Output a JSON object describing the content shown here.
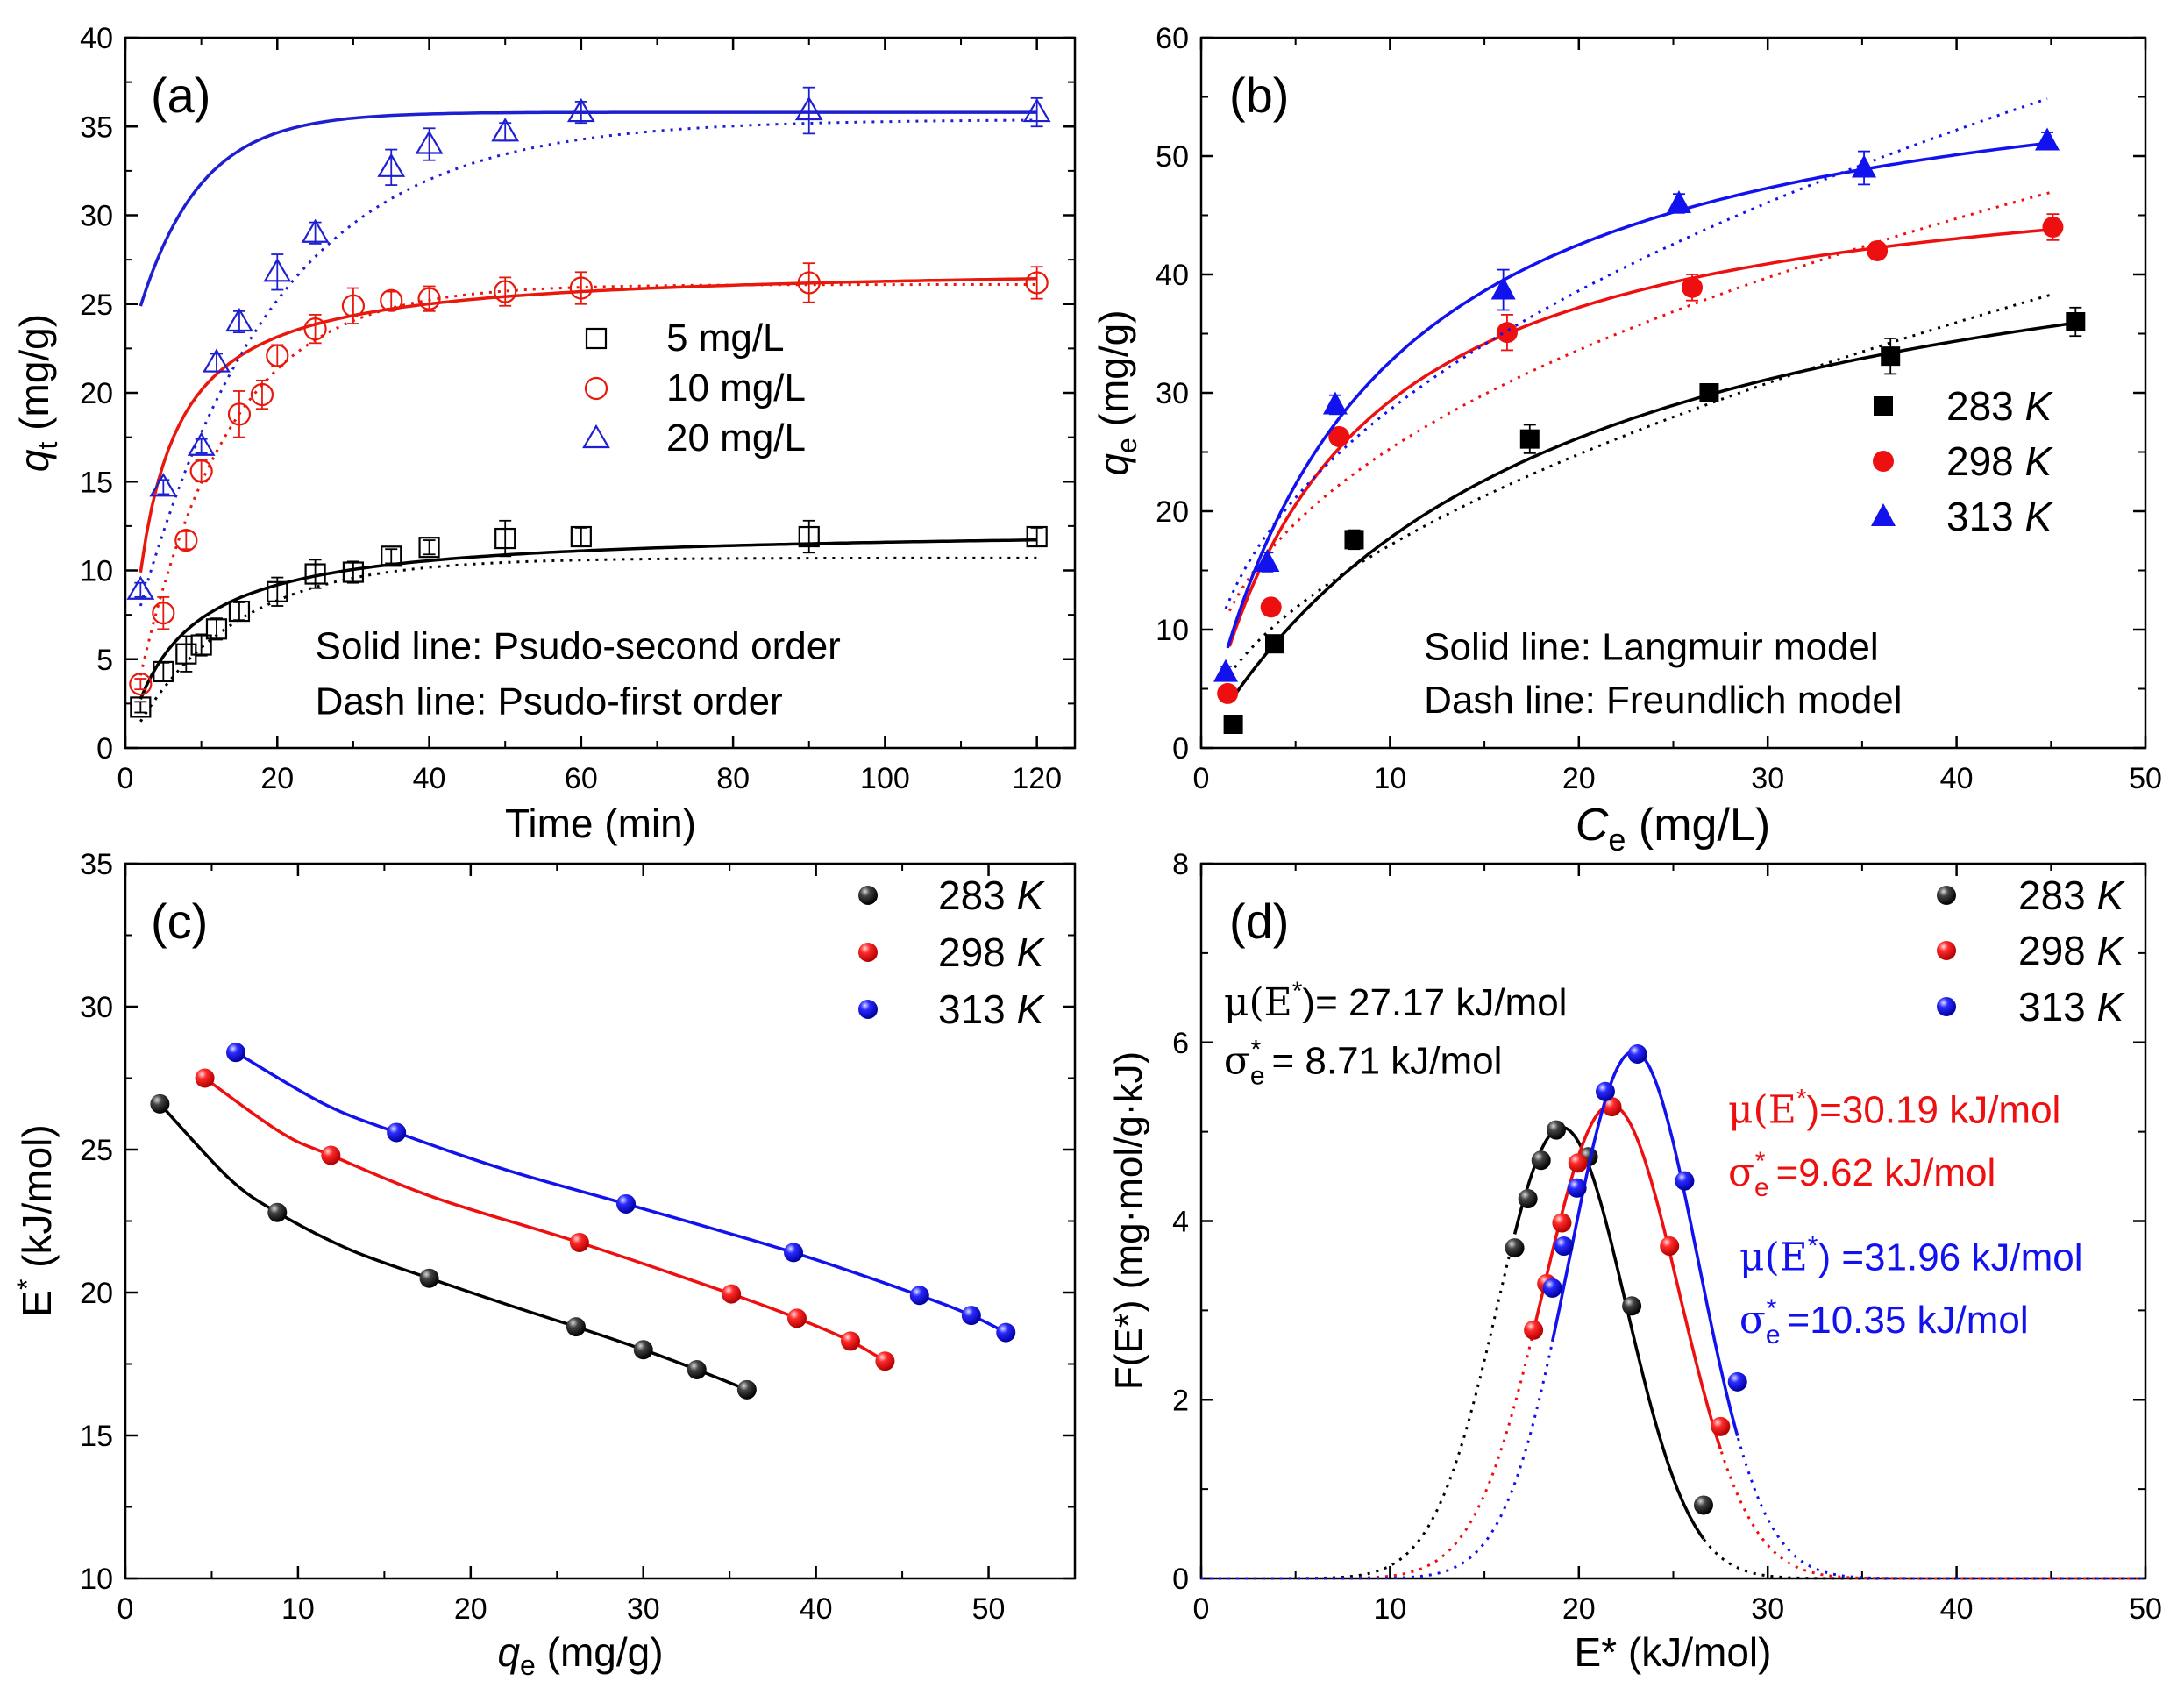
{
  "chart_data": [
    {
      "id": "a",
      "type": "scatter",
      "panel_label": "(a)",
      "xlabel": "Time (min)",
      "ylabel": {
        "main": "q",
        "sub": "t",
        "unit": " (mg/g)"
      },
      "xlim": [
        0,
        125
      ],
      "ylim": [
        0,
        40
      ],
      "xticks": [
        0,
        20,
        40,
        60,
        80,
        100,
        120
      ],
      "yticks": [
        0,
        5,
        10,
        15,
        20,
        25,
        30,
        35,
        40
      ],
      "legend": {
        "position": "center-right",
        "entries": [
          "5 mg/L",
          "10 mg/L",
          "20 mg/L"
        ]
      },
      "annotations": [
        {
          "text": "Solid line: Psudo-second order",
          "x": 25,
          "y": 5.7,
          "color": "#000000"
        },
        {
          "text": "Dash line: Psudo-first order",
          "x": 25,
          "y": 2.6,
          "color": "#000000"
        }
      ],
      "series": [
        {
          "name": "5 mg/L",
          "color": "#000000",
          "marker": "square-open",
          "x": [
            2,
            5,
            8,
            10,
            12,
            15,
            20,
            25,
            30,
            35,
            40,
            50,
            60,
            90,
            120
          ],
          "y": [
            2.3,
            4.3,
            5.3,
            5.8,
            6.7,
            7.7,
            8.8,
            9.8,
            9.9,
            10.8,
            11.3,
            11.8,
            11.9,
            11.9,
            11.9
          ],
          "yerr": [
            0.3,
            0.5,
            1.0,
            0.6,
            0.6,
            0.5,
            0.8,
            0.8,
            0.6,
            0.4,
            0.4,
            1.0,
            0.5,
            0.9,
            0.5
          ],
          "fit_solid": {
            "model": "pso",
            "qe": 12.4,
            "k": 0.0115
          },
          "fit_dash": {
            "model": "pfo",
            "qe": 10.7,
            "k": 0.075
          }
        },
        {
          "name": "10 mg/L",
          "color": "#e8180c",
          "marker": "circle-open",
          "x": [
            2,
            5,
            8,
            10,
            15,
            18,
            20,
            25,
            30,
            35,
            40,
            50,
            60,
            90,
            120
          ],
          "y": [
            3.6,
            7.6,
            11.7,
            15.6,
            18.8,
            19.9,
            22.1,
            23.6,
            24.9,
            25.2,
            25.3,
            25.7,
            25.9,
            26.2,
            26.2
          ],
          "yerr": [
            0.3,
            0.9,
            0.5,
            0.6,
            1.3,
            0.8,
            0.6,
            0.8,
            1.0,
            0.5,
            0.7,
            0.8,
            0.9,
            1.1,
            0.9
          ],
          "fit_solid": {
            "model": "pso",
            "qe": 27.2,
            "k": 0.0105
          },
          "fit_dash": {
            "model": "pfo",
            "qe": 26.1,
            "k": 0.085
          }
        },
        {
          "name": "20 mg/L",
          "color": "#1f1fd2",
          "marker": "triangle-open",
          "x": [
            2,
            5,
            10,
            12,
            15,
            20,
            25,
            35,
            40,
            50,
            60,
            90,
            120
          ],
          "y": [
            8.9,
            14.7,
            17.0,
            21.7,
            24.0,
            26.8,
            29.0,
            32.7,
            34.0,
            34.7,
            35.8,
            35.9,
            35.8
          ],
          "yerr": [
            0.4,
            0.4,
            0.4,
            0.5,
            0.6,
            1.0,
            0.6,
            1.0,
            0.9,
            0.5,
            0.6,
            1.3,
            0.8
          ],
          "fit_solid": {
            "model": "logistic",
            "qe": 35.8,
            "k": 0.125,
            "t0": 7.5
          },
          "fit_dash": {
            "model": "pfo_offset",
            "qe": 35.4,
            "k": 0.055,
            "y0": 8.0
          }
        }
      ]
    },
    {
      "id": "b",
      "type": "scatter",
      "panel_label": "(b)",
      "xlabel": {
        "main": "C",
        "sub": "e",
        "unit": " (mg/L)"
      },
      "ylabel": {
        "main": "q",
        "sub": "e",
        "unit": " (mg/g)"
      },
      "xlim": [
        0,
        50
      ],
      "ylim": [
        0,
        60
      ],
      "xticks": [
        0,
        10,
        20,
        30,
        40,
        50
      ],
      "yticks": [
        0,
        10,
        20,
        30,
        40,
        50,
        60
      ],
      "legend": {
        "position": "center-right",
        "entries": [
          "283 K",
          "298 K",
          "313 K"
        ]
      },
      "annotations": [
        {
          "text": "Solid line: Langmuir model",
          "x": 11.8,
          "y": 8.5,
          "color": "#000000"
        },
        {
          "text": "Dash line: Freundlich model",
          "x": 11.8,
          "y": 4.0,
          "color": "#000000"
        }
      ],
      "series": [
        {
          "name": "283 K",
          "label": "283",
          "unit": "K",
          "color": "#000000",
          "marker": "square-filled",
          "x": [
            1.7,
            3.9,
            8.1,
            17.4,
            26.9,
            36.5,
            46.3
          ],
          "y": [
            2.0,
            8.8,
            17.6,
            26.1,
            30.0,
            33.1,
            36.0
          ],
          "yerr": [
            0.4,
            0.7,
            0.8,
            1.2,
            0.7,
            1.5,
            1.2
          ],
          "fit_solid": {
            "model": "langmuir",
            "qm": 50.0,
            "KL": 0.055,
            "x0": 1.5,
            "x1": 46.5
          },
          "fit_dash": {
            "model": "freundlich",
            "KF": 5.0,
            "n": 1.87,
            "x0": 1.5,
            "x1": 45.0
          }
        },
        {
          "name": "298 K",
          "label": "298",
          "unit": "K",
          "color": "#ee1010",
          "marker": "circle-filled",
          "x": [
            1.4,
            3.7,
            7.3,
            16.2,
            26.0,
            35.8,
            45.1
          ],
          "y": [
            4.6,
            11.9,
            26.3,
            35.1,
            38.9,
            42.0,
            44.0
          ],
          "yerr": [
            0.4,
            0.5,
            0.6,
            1.5,
            1.1,
            0.7,
            1.1
          ],
          "fit_solid": {
            "model": "langmuir",
            "qm": 51.0,
            "KL": 0.135,
            "x0": 1.5,
            "x1": 45.2
          },
          "fit_dash": {
            "model": "freundlich",
            "KF": 9.8,
            "n": 2.43,
            "x0": 1.5,
            "x1": 45.0
          }
        },
        {
          "name": "313 K",
          "label": "313",
          "unit": "K",
          "color": "#1212ee",
          "marker": "triangle-filled",
          "x": [
            1.3,
            3.5,
            7.1,
            16.0,
            25.3,
            35.1,
            44.8
          ],
          "y": [
            6.4,
            15.7,
            29.0,
            38.7,
            46.0,
            49.0,
            51.3
          ],
          "yerr": [
            0.5,
            0.8,
            0.8,
            1.7,
            0.8,
            1.4,
            0.7
          ],
          "fit_solid": {
            "model": "langmuir",
            "qm": 61.0,
            "KL": 0.115,
            "x0": 1.4,
            "x1": 44.9
          },
          "fit_dash": {
            "model": "freundlich",
            "KF": 10.5,
            "n": 2.3,
            "x0": 1.3,
            "x1": 44.8
          }
        }
      ]
    },
    {
      "id": "c",
      "type": "line",
      "panel_label": "(c)",
      "xlabel": {
        "main": "q",
        "sub": "e",
        "unit": " (mg/g)"
      },
      "ylabel": {
        "main": "E",
        "sup": "*",
        "unit": " (kJ/mol)"
      },
      "xlim": [
        0,
        55
      ],
      "ylim": [
        10,
        35
      ],
      "xticks": [
        0,
        10,
        20,
        30,
        40,
        50
      ],
      "yticks": [
        10,
        15,
        20,
        25,
        30,
        35
      ],
      "legend": {
        "position": "top-right",
        "entries": [
          "283 K",
          "298 K",
          "313 K"
        ]
      },
      "series": [
        {
          "name": "283 K",
          "label": "283",
          "unit": "K",
          "color": "#000000",
          "x": [
            2.0,
            8.8,
            17.6,
            26.1,
            30.0,
            33.1,
            36.0
          ],
          "y": [
            26.6,
            22.8,
            20.5,
            18.8,
            18.0,
            17.3,
            16.6
          ],
          "curve_x": [
            2.0,
            6.0,
            8.8,
            13.0,
            17.6,
            22.0,
            26.1,
            30.0,
            33.1,
            36.0
          ],
          "curve_y": [
            26.6,
            24.0,
            22.8,
            21.5,
            20.5,
            19.6,
            18.8,
            18.0,
            17.3,
            16.6
          ]
        },
        {
          "name": "298 K",
          "label": "298",
          "unit": "K",
          "color": "#ee1010",
          "x": [
            4.6,
            11.9,
            26.3,
            35.1,
            38.9,
            42.0,
            44.0
          ],
          "y": [
            27.5,
            24.8,
            21.75,
            19.95,
            19.1,
            18.3,
            17.6
          ],
          "curve_x": [
            4.6,
            9.0,
            11.9,
            18.0,
            26.3,
            35.1,
            38.9,
            42.0,
            44.0
          ],
          "curve_y": [
            27.5,
            25.6,
            24.8,
            23.3,
            21.75,
            19.95,
            19.1,
            18.3,
            17.6
          ]
        },
        {
          "name": "313 K",
          "label": "313",
          "unit": "K",
          "color": "#1212ee",
          "x": [
            6.4,
            15.7,
            29.0,
            38.7,
            46.0,
            49.0,
            51.0
          ],
          "y": [
            28.4,
            25.6,
            23.1,
            21.4,
            19.9,
            19.2,
            18.6
          ],
          "curve_x": [
            6.4,
            11.5,
            15.7,
            22.0,
            29.0,
            38.7,
            46.0,
            49.0,
            51.0
          ],
          "curve_y": [
            28.4,
            26.6,
            25.6,
            24.3,
            23.1,
            21.4,
            19.9,
            19.2,
            18.6
          ]
        }
      ]
    },
    {
      "id": "d",
      "type": "line",
      "panel_label": "(d)",
      "xlabel": "E* (kJ/mol)",
      "ylabel": "F(E*) (mg·mol/g·kJ)",
      "xlim": [
        0,
        50
      ],
      "ylim": [
        0,
        8
      ],
      "xticks": [
        0,
        10,
        20,
        30,
        40,
        50
      ],
      "yticks": [
        0,
        2,
        4,
        6,
        8
      ],
      "legend": {
        "position": "top-right",
        "entries": [
          "283 K",
          "298 K",
          "313 K"
        ]
      },
      "annotations": [
        {
          "mu_label": "μ(E",
          "mu_value": ")= 27.17 kJ/mol",
          "sigma_value": " = 8.71 kJ/mol",
          "color": "#000000",
          "x": 1.2,
          "y": 6.3,
          "y2": 5.65
        },
        {
          "mu_label": "μ(E",
          "mu_value": ")=30.19 kJ/mol",
          "sigma_value": " =9.62 kJ/mol",
          "color": "#ee1010",
          "x": 27.9,
          "y": 5.1,
          "y2": 4.4
        },
        {
          "mu_label": "μ(E",
          "mu_value": ") =31.96 kJ/mol",
          "sigma_value": " =10.35 kJ/mol",
          "color": "#1212ee",
          "x": 28.5,
          "y": 3.45,
          "y2": 2.75
        }
      ],
      "series": [
        {
          "name": "283 K",
          "label": "283",
          "unit": "K",
          "color": "#000000",
          "peak": 5.05,
          "center": 19.1,
          "sigma": 3.4,
          "solid_from": 16.6,
          "solid_to": 26.6,
          "x": [
            16.6,
            17.3,
            18.0,
            18.8,
            20.5,
            22.8,
            26.6
          ],
          "y": [
            3.7,
            4.25,
            4.68,
            5.02,
            4.72,
            3.05,
            0.82
          ]
        },
        {
          "name": "298 K",
          "label": "298",
          "unit": "K",
          "color": "#ee1010",
          "peak": 5.3,
          "center": 21.7,
          "sigma": 3.6,
          "solid_from": 17.6,
          "solid_to": 27.5,
          "x": [
            17.6,
            18.3,
            19.1,
            19.95,
            21.75,
            24.8,
            27.5
          ],
          "y": [
            2.78,
            3.3,
            3.98,
            4.65,
            5.28,
            3.72,
            1.7
          ]
        },
        {
          "name": "313 K",
          "label": "313",
          "unit": "K",
          "color": "#1212ee",
          "peak": 5.9,
          "center": 22.9,
          "sigma": 3.4,
          "solid_from": 18.6,
          "solid_to": 28.4,
          "x": [
            18.6,
            19.2,
            19.9,
            21.4,
            23.1,
            25.6,
            28.4
          ],
          "y": [
            3.25,
            3.72,
            4.37,
            5.45,
            5.87,
            4.45,
            2.2
          ]
        }
      ]
    }
  ]
}
